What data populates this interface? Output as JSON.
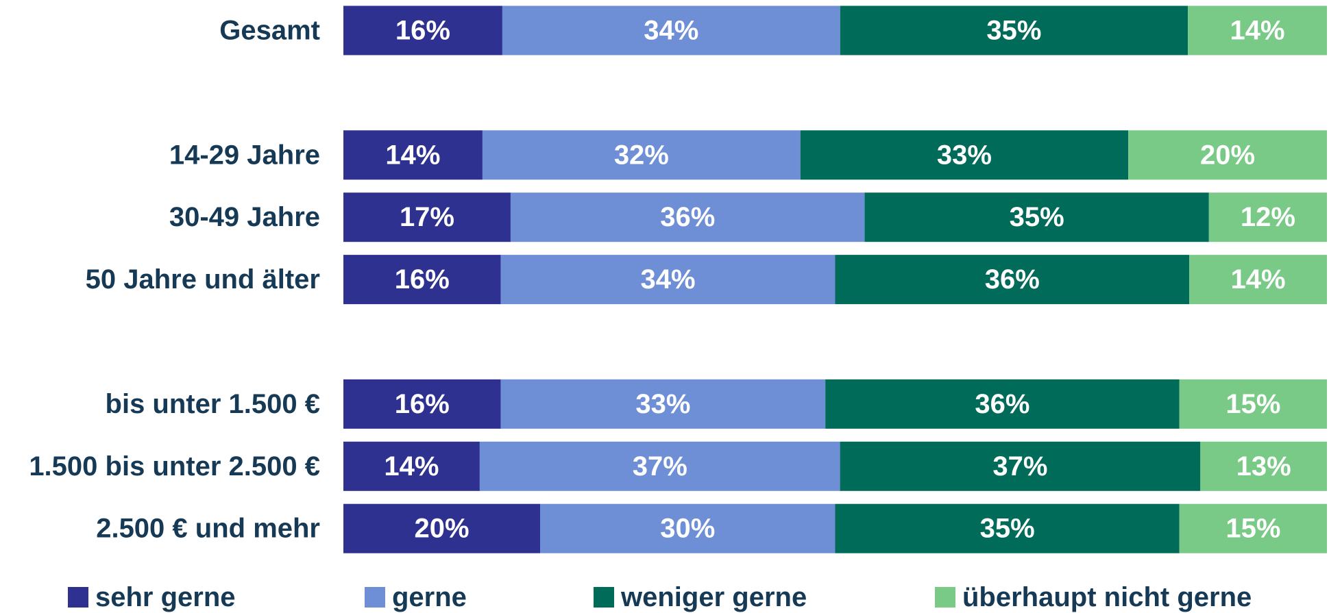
{
  "chart_data": {
    "type": "stacked_bar_horizontal",
    "categories": [
      "Gesamt",
      null,
      "14-29 Jahre",
      "30-49 Jahre",
      "50 Jahre und älter",
      null,
      "bis unter 1.500 €",
      "1.500 bis unter 2.500 €",
      "2.500 € und mehr"
    ],
    "series": [
      {
        "name": "sehr gerne",
        "color": "#2e3190",
        "values": [
          16,
          null,
          14,
          17,
          16,
          null,
          16,
          14,
          20
        ],
        "value_labels": [
          "16%",
          null,
          "14%",
          "17%",
          "16%",
          null,
          "16%",
          "14%",
          "20%"
        ]
      },
      {
        "name": "gerne",
        "color": "#6e8fd6",
        "values": [
          34,
          null,
          32,
          36,
          34,
          null,
          33,
          37,
          30
        ],
        "value_labels": [
          "34%",
          null,
          "32%",
          "36%",
          "34%",
          null,
          "33%",
          "37%",
          "30%"
        ]
      },
      {
        "name": "weniger gerne",
        "color": "#006b59",
        "values": [
          35,
          null,
          33,
          35,
          36,
          null,
          36,
          37,
          35
        ],
        "value_labels": [
          "35%",
          null,
          "33%",
          "35%",
          "36%",
          null,
          "36%",
          "37%",
          "35%"
        ]
      },
      {
        "name": "überhaupt nicht gerne",
        "color": "#79c987",
        "values": [
          14,
          null,
          20,
          12,
          14,
          null,
          15,
          13,
          15
        ],
        "value_labels": [
          "14%",
          null,
          "20%",
          "12%",
          "14%",
          null,
          "15%",
          "13%",
          "15%"
        ]
      }
    ],
    "legend": "bottom"
  }
}
